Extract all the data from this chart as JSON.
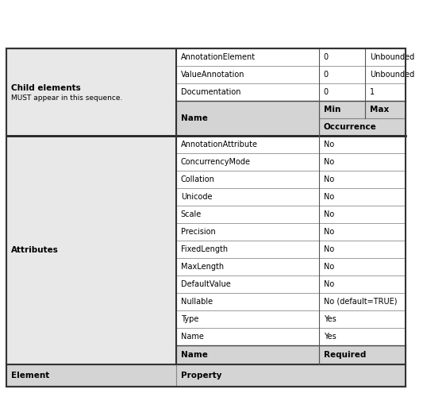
{
  "fig_width": 5.33,
  "fig_height": 4.95,
  "dpi": 100,
  "background_color": "#ffffff",
  "header_bg": "#d4d4d4",
  "cell_bg_light": "#e8e8e8",
  "cell_bg_white": "#ffffff",
  "text_color": "#000000",
  "header_fontsize": 7.5,
  "cell_fontsize": 7.0,
  "child_label_fontsize": 7.5,
  "child_sublabel_fontsize": 6.5,
  "attr_rows": [
    {
      "name": "Name",
      "required": "Yes"
    },
    {
      "name": "Type",
      "required": "Yes"
    },
    {
      "name": "Nullable",
      "required": "No (default=TRUE)"
    },
    {
      "name": "DefaultValue",
      "required": "No"
    },
    {
      "name": "MaxLength",
      "required": "No"
    },
    {
      "name": "FixedLength",
      "required": "No"
    },
    {
      "name": "Precision",
      "required": "No"
    },
    {
      "name": "Scale",
      "required": "No"
    },
    {
      "name": "Unicode",
      "required": "No"
    },
    {
      "name": "Collation",
      "required": "No"
    },
    {
      "name": "ConcurrencyMode",
      "required": "No"
    },
    {
      "name": "AnnotationAttribute",
      "required": "No"
    }
  ],
  "child_label_line1": "Child elements",
  "child_label_line2": "MUST appear in this sequence.",
  "child_occurrence_header": "Occurrence",
  "child_rows": [
    {
      "name": "Documentation",
      "min": "0",
      "max": "1"
    },
    {
      "name": "ValueAnnotation",
      "min": "0",
      "max": "Unbounded"
    },
    {
      "name": "AnnotationElement",
      "min": "0",
      "max": "Unbounded"
    }
  ]
}
